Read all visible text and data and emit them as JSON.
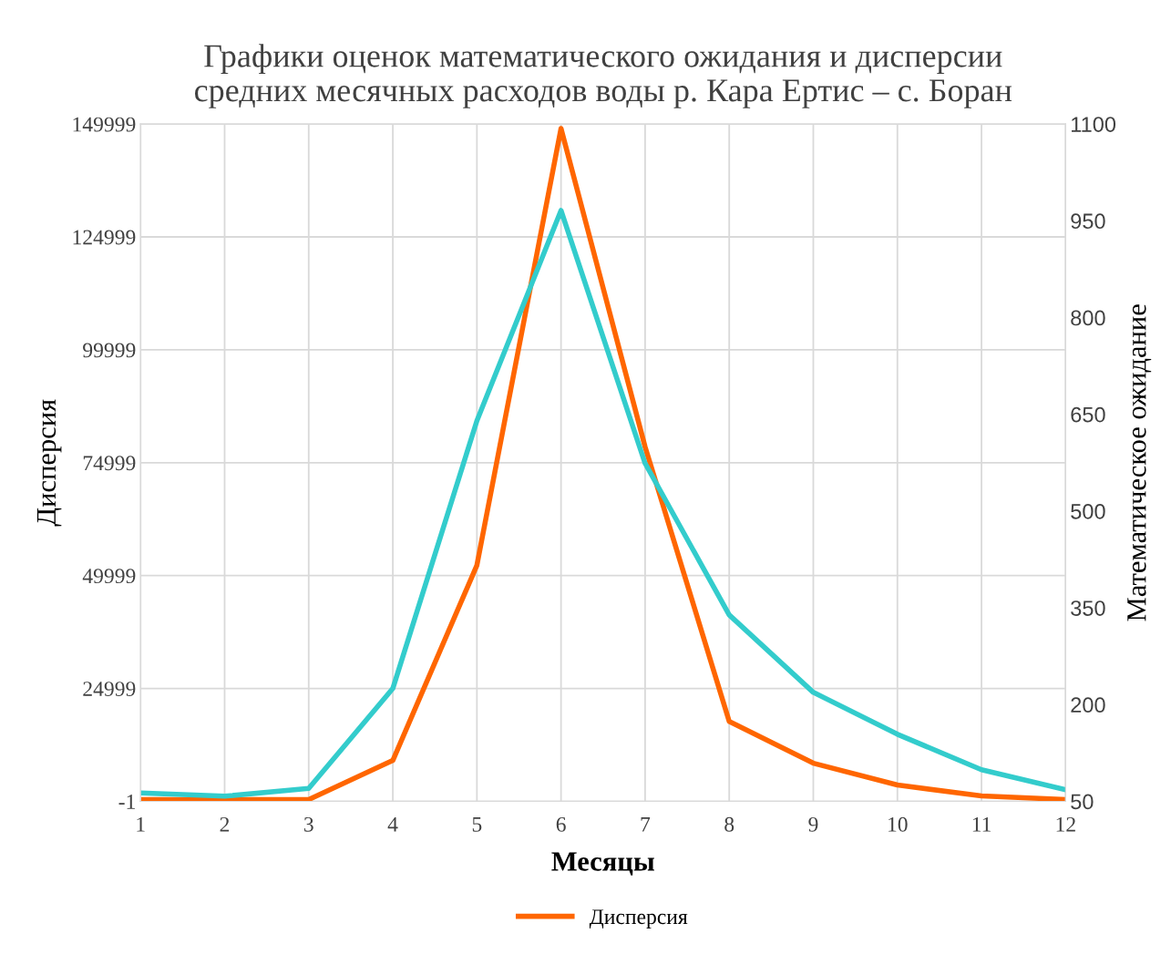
{
  "chart_data": {
    "type": "line",
    "title": "Графики оценок математического ожидания и дисперсии\nсредних месячных расходов воды р. Кара Ертис – с. Боран",
    "xlabel": "Месяцы",
    "ylabel": "Дисперсия",
    "y2label": "Математическое ожидание",
    "x": [
      1,
      2,
      3,
      4,
      5,
      6,
      7,
      8,
      9,
      10,
      11,
      12
    ],
    "series": [
      {
        "name": "Дисперсия",
        "color": "#ff6600",
        "values": [
          400,
          400,
          400,
          9060,
          52300,
          149000,
          78500,
          17700,
          8450,
          3620,
          1200,
          400
        ]
      },
      {
        "color": "#33cccc",
        "axis": "y2",
        "values": [
          63,
          58,
          70,
          225,
          640,
          966,
          574,
          339,
          219,
          154,
          99,
          68
        ]
      }
    ],
    "xlim": [
      1,
      12
    ],
    "xticks": [
      1,
      2,
      3,
      4,
      5,
      6,
      7,
      8,
      9,
      10,
      11,
      12
    ],
    "ylim": [
      -1,
      149999
    ],
    "yticks": [
      -1,
      24999,
      49999,
      74999,
      99999,
      124999,
      149999
    ],
    "y2lim": [
      50,
      1100
    ],
    "y2ticks": [
      50,
      200,
      350,
      500,
      650,
      800,
      950,
      1100
    ],
    "grid": true,
    "legend": "bottom",
    "marker": "none",
    "line_style": "solid"
  }
}
